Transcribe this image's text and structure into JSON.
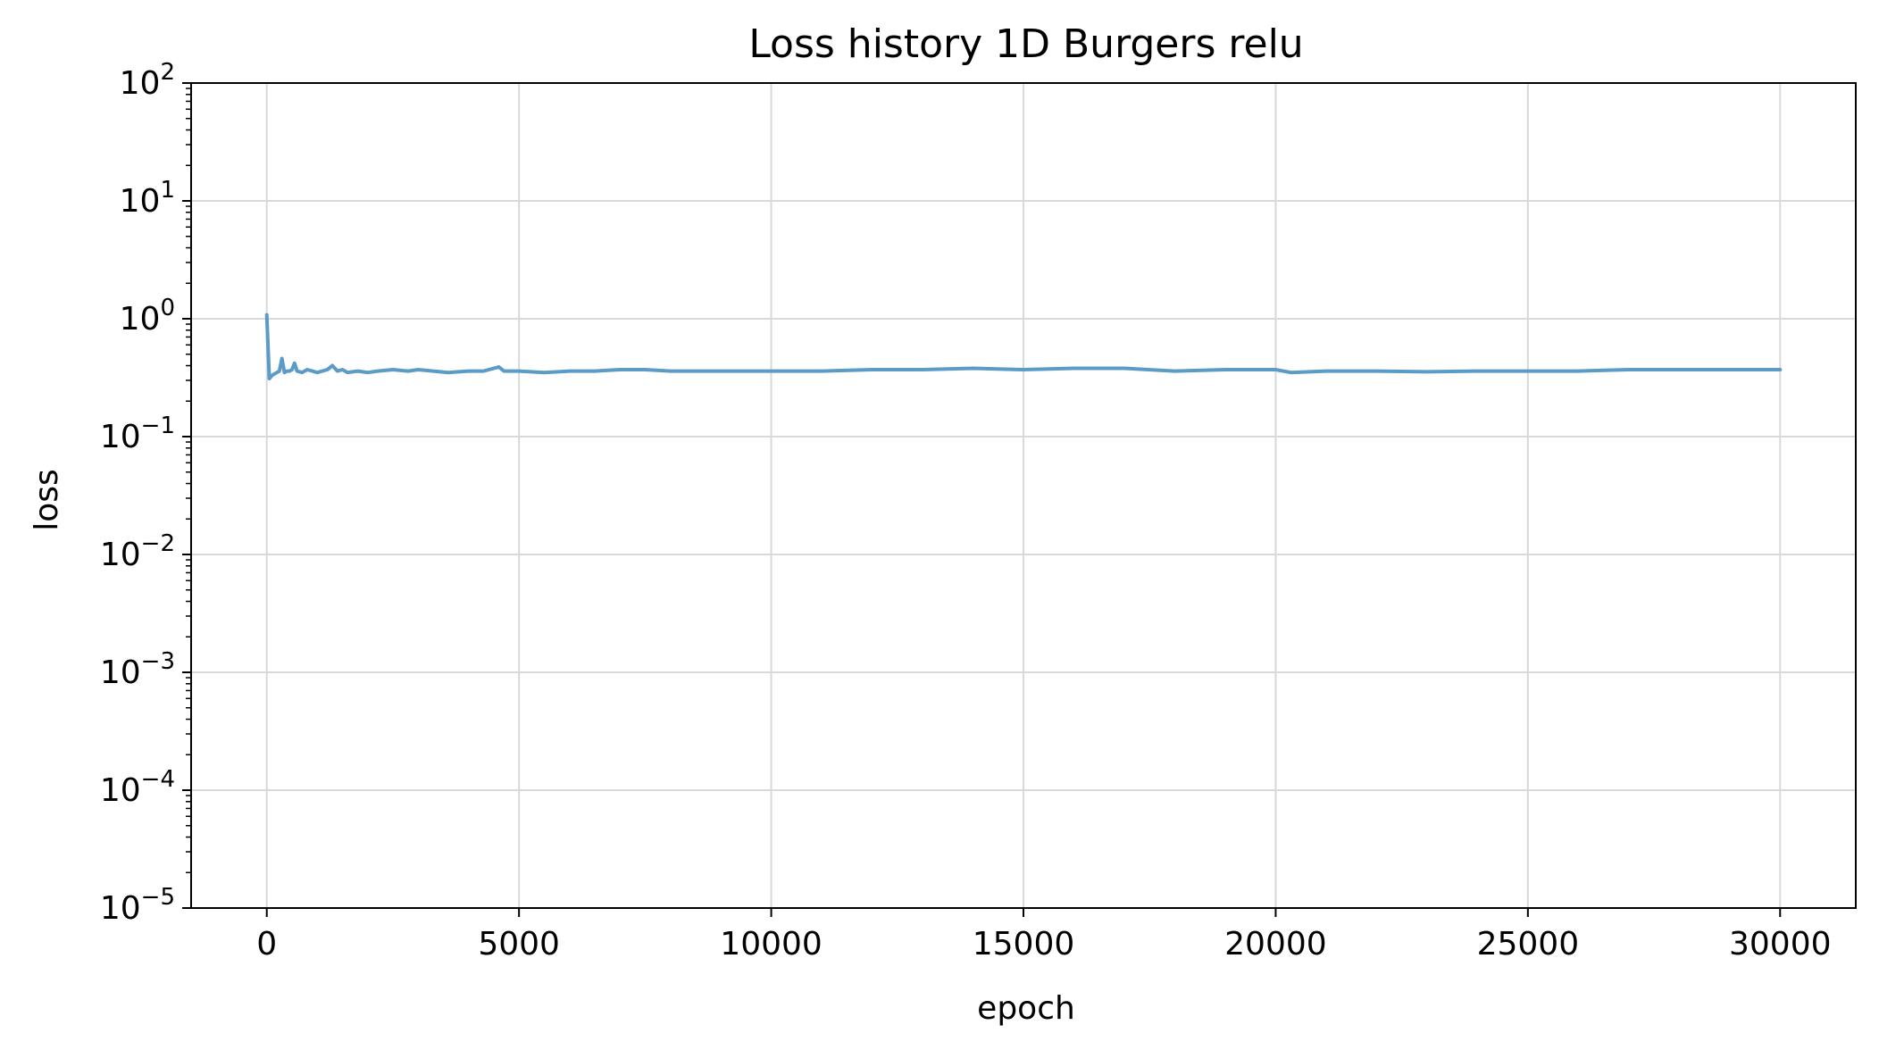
{
  "chart_data": {
    "type": "line",
    "title": "Loss history 1D Burgers relu",
    "xlabel": "epoch",
    "ylabel": "loss",
    "xlim": [
      -1500,
      31500
    ],
    "ylim": [
      1e-05,
      100
    ],
    "yscale": "log",
    "grid": true,
    "x_ticks": [
      0,
      5000,
      10000,
      15000,
      20000,
      25000,
      30000
    ],
    "x_tick_labels": [
      "0",
      "5000",
      "10000",
      "15000",
      "20000",
      "25000",
      "30000"
    ],
    "y_ticks": [
      {
        "value": 1e-05,
        "base": "10",
        "exp": "−5"
      },
      {
        "value": 0.0001,
        "base": "10",
        "exp": "−4"
      },
      {
        "value": 0.001,
        "base": "10",
        "exp": "−3"
      },
      {
        "value": 0.01,
        "base": "10",
        "exp": "−2"
      },
      {
        "value": 0.1,
        "base": "10",
        "exp": "−1"
      },
      {
        "value": 1,
        "base": "10",
        "exp": "0"
      },
      {
        "value": 10,
        "base": "10",
        "exp": "1"
      },
      {
        "value": 100,
        "base": "10",
        "exp": "2"
      }
    ],
    "colors": {
      "line": "#5b9bc8",
      "grid": "#d9d9d9",
      "axes": "#000000"
    },
    "series": [
      {
        "x": [
          0,
          50,
          100,
          150,
          200,
          250,
          300,
          350,
          400,
          450,
          500,
          550,
          600,
          700,
          800,
          900,
          1000,
          1100,
          1200,
          1300,
          1400,
          1500,
          1600,
          1800,
          2000,
          2200,
          2500,
          2800,
          3000,
          3300,
          3600,
          4000,
          4300,
          4600,
          4700,
          5000,
          5500,
          6000,
          6500,
          7000,
          7500,
          8000,
          8500,
          9000,
          9500,
          10000,
          11000,
          12000,
          13000,
          14000,
          15000,
          16000,
          17000,
          18000,
          19000,
          20000,
          20300,
          21000,
          22000,
          23000,
          24000,
          25000,
          26000,
          27000,
          28000,
          29000,
          30000
        ],
        "values": [
          1.08,
          0.31,
          0.33,
          0.34,
          0.35,
          0.36,
          0.46,
          0.35,
          0.36,
          0.36,
          0.37,
          0.42,
          0.36,
          0.35,
          0.37,
          0.36,
          0.35,
          0.36,
          0.37,
          0.4,
          0.36,
          0.37,
          0.35,
          0.36,
          0.35,
          0.36,
          0.37,
          0.36,
          0.37,
          0.36,
          0.35,
          0.36,
          0.36,
          0.39,
          0.36,
          0.36,
          0.35,
          0.36,
          0.36,
          0.37,
          0.37,
          0.36,
          0.36,
          0.36,
          0.36,
          0.36,
          0.36,
          0.37,
          0.37,
          0.38,
          0.37,
          0.38,
          0.38,
          0.36,
          0.37,
          0.37,
          0.35,
          0.36,
          0.36,
          0.355,
          0.36,
          0.36,
          0.36,
          0.37,
          0.37,
          0.37,
          0.37
        ]
      }
    ]
  }
}
